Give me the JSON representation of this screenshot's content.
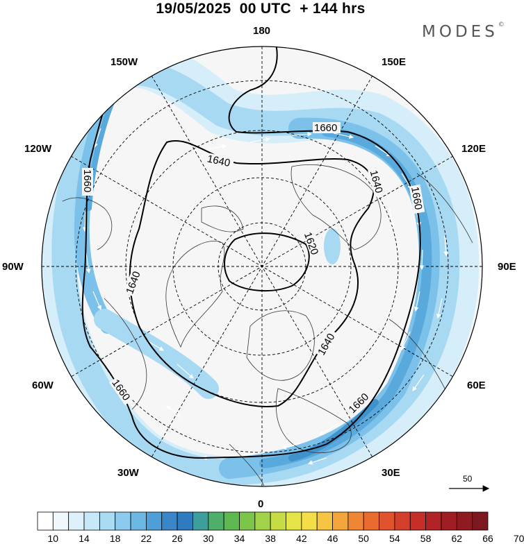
{
  "header": {
    "title": "19/05/2025  00 UTC  + 144 hrs",
    "brand": "MODES",
    "brand_mark": "©"
  },
  "map": {
    "projection": "north-polar-stereographic",
    "longitude_labels": {
      "n180": "180",
      "e150": "150E",
      "e120": "120E",
      "e90": "90E",
      "e60": "60E",
      "e30": "30E",
      "s0": "0",
      "w30": "30W",
      "w60": "60W",
      "w90": "90W",
      "w120": "120W",
      "w150": "150W"
    },
    "contours": {
      "label_1620": "1620",
      "label_1640": "1640",
      "label_1660": "1660",
      "line_color": "#000000"
    },
    "reference_vector": {
      "value": "50"
    },
    "shading_colors": [
      "#ffffff",
      "#d7eefa",
      "#a9d9f3",
      "#77bde8",
      "#4a98d3"
    ]
  },
  "colorbar": {
    "tick_labels": [
      "10",
      "14",
      "18",
      "22",
      "26",
      "30",
      "34",
      "38",
      "42",
      "46",
      "50",
      "54",
      "58",
      "62",
      "66",
      "70"
    ],
    "colors": [
      "#ffffff",
      "#eef8fd",
      "#ddf1fb",
      "#c6e8f8",
      "#a9dbf3",
      "#8ccbed",
      "#6db7e4",
      "#4e9ed7",
      "#3b86c8",
      "#2f7bbf",
      "#3e9e9b",
      "#4eae6a",
      "#5cb84f",
      "#7cc44a",
      "#a2d14a",
      "#c6dc47",
      "#e4e449",
      "#f3de47",
      "#f6c542",
      "#f4a53c",
      "#ef8636",
      "#ea6b30",
      "#e0532c",
      "#d43f2b",
      "#c52e29",
      "#b22326",
      "#a01d24",
      "#8f1a22",
      "#7d1720"
    ]
  }
}
